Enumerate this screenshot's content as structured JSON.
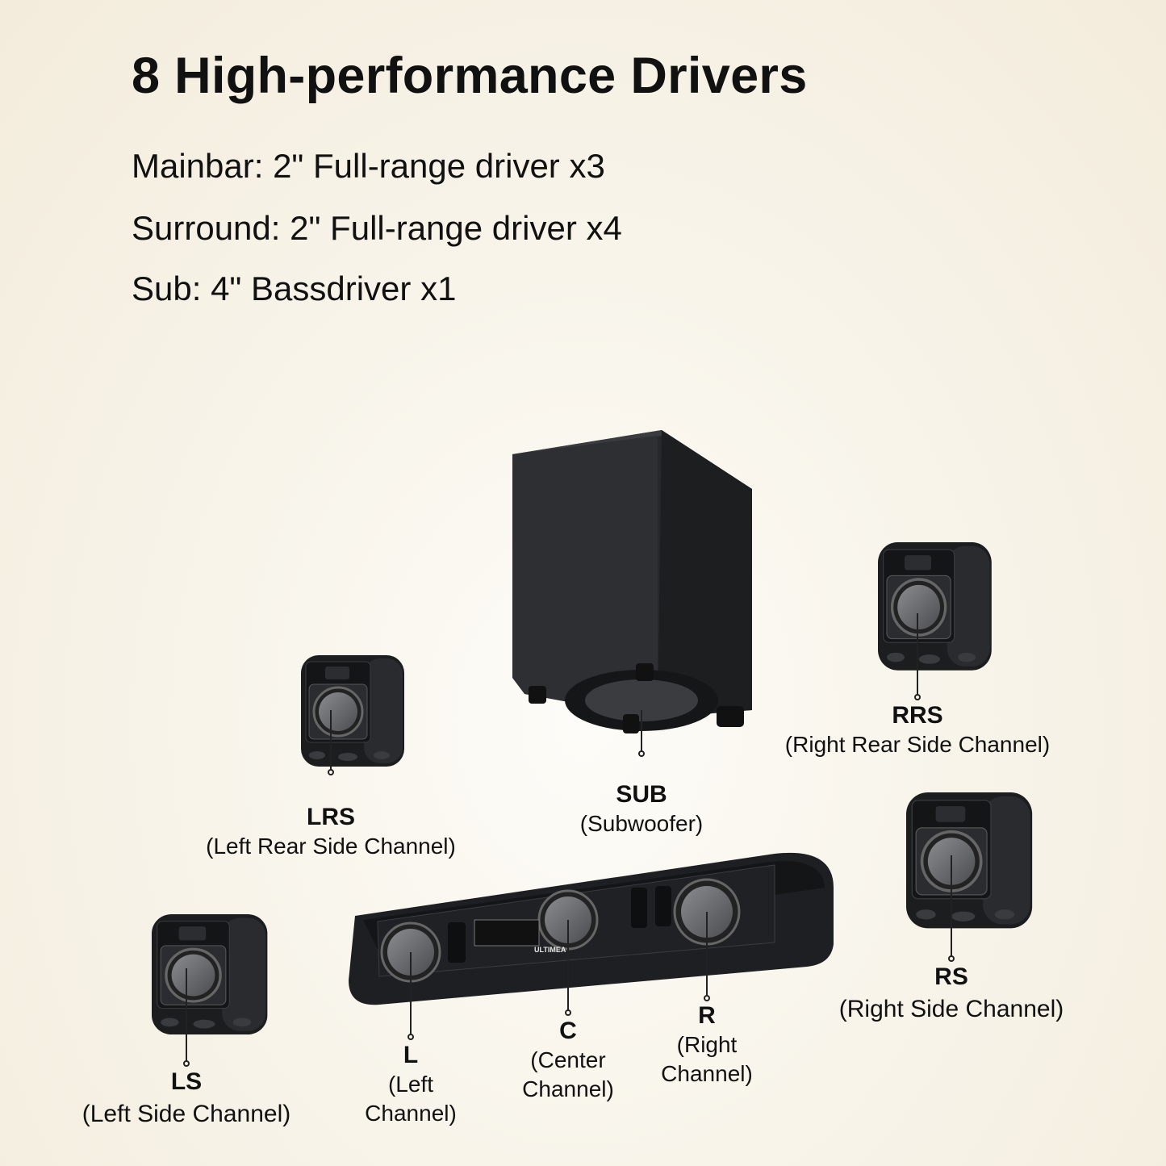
{
  "title": "8 High-performance Drivers",
  "specs": [
    "Mainbar: 2\" Full-range driver x3",
    "Surround: 2\" Full-range driver x4",
    "Sub: 4\" Bassdriver x1"
  ],
  "brand_logo": "ULTIMEA",
  "labels": {
    "sub": {
      "code": "SUB",
      "desc": "(Subwoofer)"
    },
    "rrs": {
      "code": "RRS",
      "desc": "(Right Rear Side Channel)"
    },
    "lrs": {
      "code": "LRS",
      "desc": "(Left Rear Side Channel)"
    },
    "rs": {
      "code": "RS",
      "desc": "(Right Side Channel)"
    },
    "ls": {
      "code": "LS",
      "desc": "(Left Side Channel)"
    },
    "l": {
      "code": "L",
      "desc1": "(Left",
      "desc2": "Channel)"
    },
    "c": {
      "code": "C",
      "desc1": "(Center",
      "desc2": "Channel)"
    },
    "r": {
      "code": "R",
      "desc1": "(Right",
      "desc2": "Channel)"
    }
  },
  "colors": {
    "background": "#f6f1e5",
    "product": "#1e1f21",
    "text": "#111111"
  }
}
